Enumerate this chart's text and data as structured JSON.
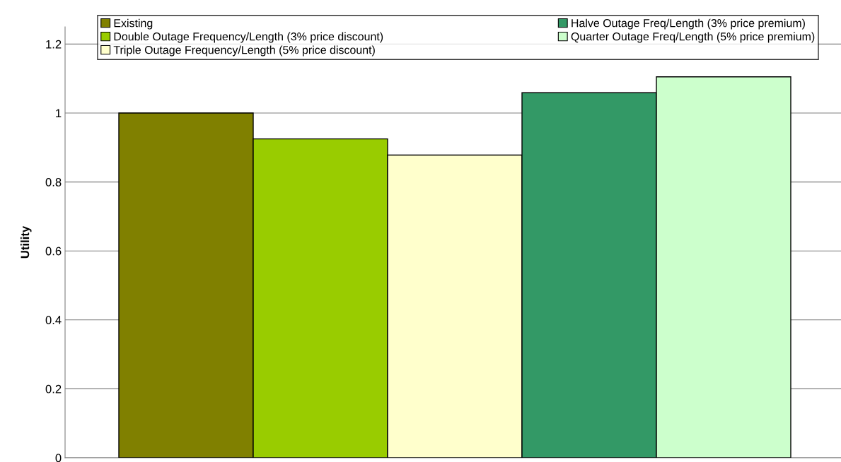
{
  "chart_data": {
    "type": "bar",
    "ylabel": "Utility",
    "categories": [
      null
    ],
    "series": [
      {
        "name": "Existing",
        "color": "#808000",
        "values": [
          1.0
        ]
      },
      {
        "name": "Double Outage Frequency/Length (3% price discount)",
        "color": "#99cc00",
        "values": [
          0.925
        ]
      },
      {
        "name": "Triple Outage Frequency/Length (5% price discount)",
        "color": "#ffffcc",
        "values": [
          0.878
        ]
      },
      {
        "name": "Halve Outage Freq/Length (3% price premium)",
        "color": "#339966",
        "values": [
          1.059
        ]
      },
      {
        "name": "Quarter Outage Freq/Length (5% price premium)",
        "color": "#ccffcc",
        "values": [
          1.105
        ]
      }
    ],
    "ylim": [
      0,
      1.25
    ],
    "yticks": [
      0,
      0.2,
      0.4,
      0.6,
      0.8,
      1,
      1.2
    ],
    "grid": "y",
    "legend": "top",
    "tick_labels": "y"
  }
}
